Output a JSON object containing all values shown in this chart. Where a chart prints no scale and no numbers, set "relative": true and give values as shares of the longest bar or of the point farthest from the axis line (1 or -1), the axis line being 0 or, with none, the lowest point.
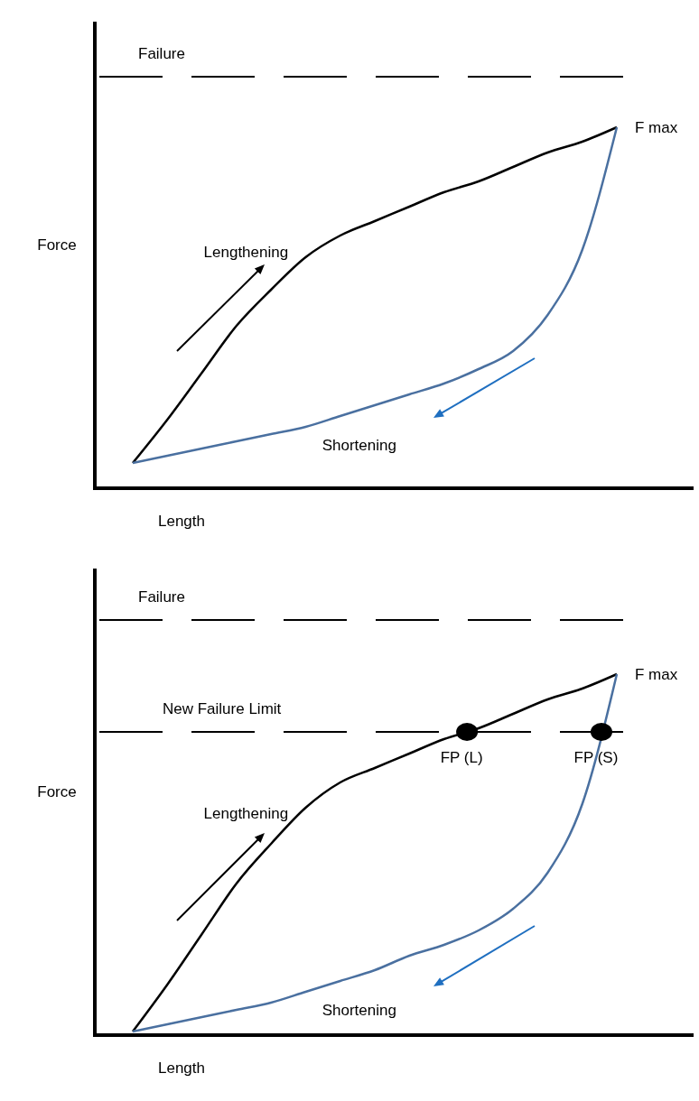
{
  "chart_data": [
    {
      "type": "line",
      "relative": true,
      "xlabel": "Length",
      "ylabel": "Force",
      "categories": [
        null,
        null,
        null,
        null,
        null,
        null,
        null,
        null,
        null,
        null,
        null,
        null,
        null,
        null,
        null
      ],
      "series": [
        {
          "name": "Lengthening",
          "color": "#000000",
          "values": [
            0.07,
            0.19,
            0.32,
            0.45,
            0.55,
            0.64,
            0.7,
            0.74,
            0.78,
            0.82,
            0.85,
            0.89,
            0.93,
            0.96,
            1
          ]
        },
        {
          "name": "Shortening",
          "color": "#4a70a0",
          "values": [
            0.07,
            0.09,
            0.11,
            0.13,
            0.15,
            0.17,
            0.2,
            0.23,
            0.26,
            0.29,
            0.33,
            0.38,
            0.48,
            0.66,
            1
          ]
        }
      ],
      "ref_lines": [
        {
          "axis": "y",
          "value": 1.14,
          "label": "Failure",
          "line_style": "dashed",
          "color": "#000000"
        }
      ],
      "annotations": [
        "F max"
      ],
      "line_style": "solid",
      "marker": "none",
      "grid": false,
      "legend": false
    },
    {
      "type": "line",
      "relative": true,
      "xlabel": "Length",
      "ylabel": "Force",
      "categories": [
        null,
        null,
        null,
        null,
        null,
        null,
        null,
        null,
        null,
        null,
        null,
        null,
        null,
        null,
        null
      ],
      "series": [
        {
          "name": "Lengthening",
          "color": "#000000",
          "values": [
            0.01,
            0.14,
            0.28,
            0.42,
            0.53,
            0.63,
            0.7,
            0.74,
            0.78,
            0.82,
            0.85,
            0.89,
            0.93,
            0.96,
            1
          ]
        },
        {
          "name": "Shortening",
          "color": "#4a70a0",
          "values": [
            0.01,
            0.03,
            0.05,
            0.07,
            0.09,
            0.12,
            0.15,
            0.18,
            0.22,
            0.25,
            0.29,
            0.35,
            0.45,
            0.64,
            1
          ]
        }
      ],
      "ref_lines": [
        {
          "axis": "y",
          "value": 1.15,
          "label": "Failure",
          "line_style": "dashed",
          "color": "#000000"
        },
        {
          "axis": "y",
          "value": 0.84,
          "label": "New Failure Limit",
          "line_style": "dashed",
          "color": "#000000"
        }
      ],
      "annotations": [
        "F max",
        "FP (L)",
        "FP (S)"
      ],
      "line_style": "solid",
      "marker": "none",
      "grid": false,
      "legend": false
    }
  ]
}
